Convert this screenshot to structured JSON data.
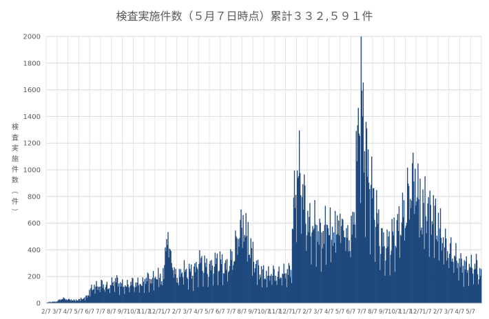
{
  "chart_data": {
    "type": "bar",
    "title": "検査実施件数（５月７日時点）累計３３２,５９１件",
    "ylabel": "検査実施件数（件）",
    "xlabel": "",
    "ylim": [
      0,
      2000
    ],
    "yticks": [
      0,
      200,
      400,
      600,
      800,
      1000,
      1200,
      1400,
      1600,
      1800,
      2000
    ],
    "grid": true,
    "legend": "none",
    "colors": {
      "bar": "#1f497d",
      "grid": "#d9d9d9",
      "text": "#595959"
    },
    "x_tick_labels": [
      "2/7",
      "3/7",
      "4/7",
      "5/7",
      "6/7",
      "7/7",
      "8/7",
      "9/7",
      "10/7",
      "11/7",
      "12/7",
      "1/7",
      "2/7",
      "3/7",
      "4/7",
      "5/7",
      "6/7",
      "7/7",
      "8/7",
      "9/7",
      "10/7",
      "11/7",
      "12/7",
      "1/7",
      "2/7",
      "3/7",
      "4/7",
      "5/7",
      "6/7",
      "7/7",
      "8/7",
      "9/7",
      "10/7",
      "11/7",
      "12/7",
      "1/7",
      "2/7",
      "3/7",
      "4/7",
      "5/7"
    ],
    "weekly_values": [
      5,
      8,
      12,
      10,
      15,
      25,
      40,
      35,
      30,
      28,
      25,
      22,
      25,
      30,
      35,
      40,
      60,
      100,
      120,
      130,
      125,
      140,
      150,
      130,
      120,
      140,
      160,
      180,
      150,
      140,
      135,
      130,
      140,
      160,
      150,
      145,
      150,
      140,
      160,
      200,
      170,
      180,
      190,
      200,
      210,
      160,
      350,
      560,
      400,
      300,
      230,
      200,
      220,
      260,
      240,
      220,
      250,
      230,
      260,
      300,
      320,
      290,
      280,
      260,
      270,
      290,
      310,
      330,
      300,
      280,
      270,
      300,
      350,
      420,
      500,
      580,
      620,
      600,
      520,
      450,
      380,
      300,
      270,
      240,
      230,
      220,
      210,
      220,
      230,
      220,
      215,
      220,
      225,
      230,
      240,
      250,
      700,
      900,
      1000,
      950,
      800,
      700,
      600,
      550,
      600,
      560,
      520,
      500,
      540,
      600,
      560,
      520,
      560,
      600,
      640,
      620,
      560,
      520,
      500,
      600,
      800,
      1300,
      1600,
      1450,
      1200,
      1000,
      900,
      800,
      700,
      600,
      500,
      450,
      420,
      460,
      500,
      520,
      540,
      600,
      640,
      700,
      800,
      900,
      950,
      1000,
      900,
      800,
      700,
      750,
      720,
      680,
      700,
      650,
      600,
      560,
      500,
      450,
      420,
      400,
      380,
      350,
      320,
      300,
      290,
      280,
      270,
      280,
      260,
      300,
      250,
      230
    ]
  }
}
